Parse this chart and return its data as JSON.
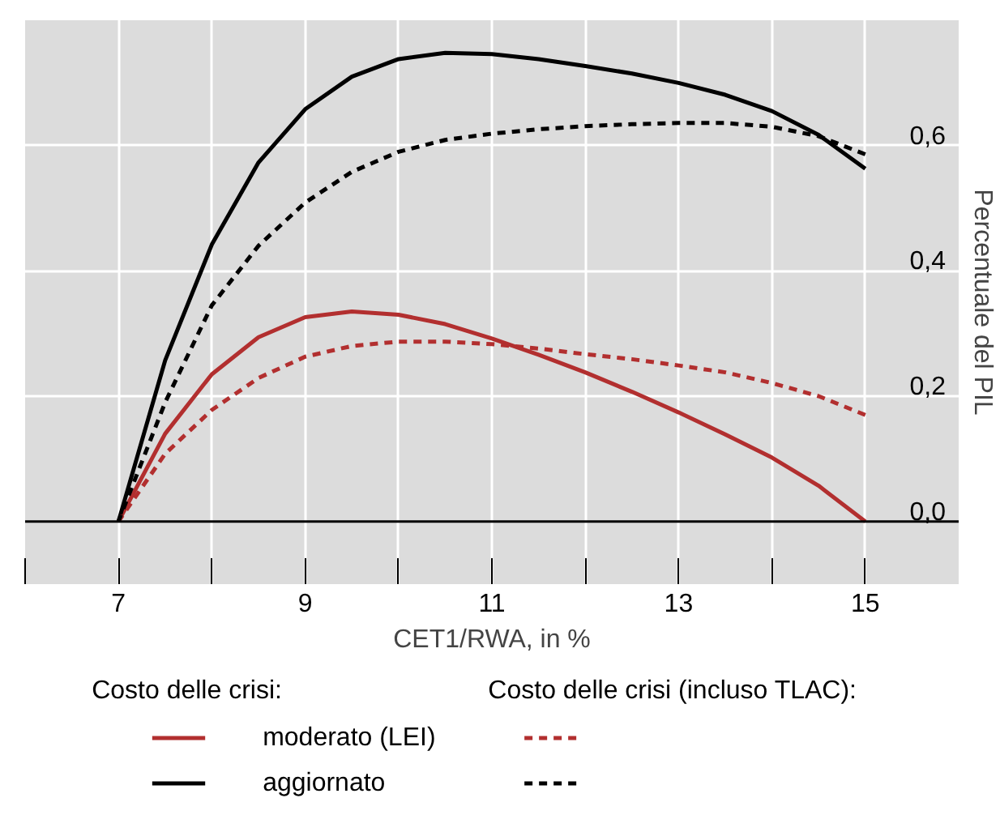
{
  "chart_data": {
    "type": "line",
    "xlabel": "CET1/RWA, in %",
    "ylabel": "Percentuale del PIL",
    "x": [
      7,
      7.5,
      8,
      8.5,
      9,
      9.5,
      10,
      10.5,
      11,
      11.5,
      12,
      12.5,
      13,
      13.5,
      14,
      14.5,
      15
    ],
    "series": [
      {
        "name": "moderato (LEI)",
        "color": "#b22f2f",
        "line_style": "solid",
        "values": [
          0,
          0.14,
          0.235,
          0.294,
          0.326,
          0.335,
          0.33,
          0.315,
          0.292,
          0.266,
          0.238,
          0.207,
          0.174,
          0.139,
          0.102,
          0.057,
          0
        ]
      },
      {
        "name": "aggiornato",
        "color": "#000000",
        "line_style": "solid",
        "values": [
          0,
          0.257,
          0.442,
          0.573,
          0.658,
          0.71,
          0.738,
          0.748,
          0.746,
          0.738,
          0.727,
          0.715,
          0.7,
          0.681,
          0.655,
          0.617,
          0.563
        ]
      },
      {
        "color": "#b22f2f",
        "line_style": "dashed",
        "values": [
          0,
          0.108,
          0.178,
          0.229,
          0.263,
          0.28,
          0.287,
          0.287,
          0.283,
          0.276,
          0.267,
          0.259,
          0.249,
          0.238,
          0.221,
          0.2,
          0.17
        ]
      },
      {
        "color": "#000000",
        "line_style": "dashed",
        "values": [
          0,
          0.19,
          0.345,
          0.44,
          0.509,
          0.558,
          0.59,
          0.609,
          0.619,
          0.626,
          0.631,
          0.634,
          0.636,
          0.636,
          0.63,
          0.615,
          0.586
        ]
      }
    ],
    "xlim": [
      6,
      16
    ],
    "xticks": [
      {
        "value": 6,
        "label": null
      },
      7,
      {
        "value": 8,
        "label": null
      },
      9,
      {
        "value": 10,
        "label": null
      },
      11,
      {
        "value": 12,
        "label": null
      },
      13,
      {
        "value": 14,
        "label": null
      },
      15
    ],
    "ylim": [
      -0.1,
      0.8
    ],
    "yticks": [
      {
        "value": 0,
        "label": "0,0"
      },
      {
        "value": 0.2,
        "label": "0,2"
      },
      {
        "value": 0.4,
        "label": "0,4"
      },
      {
        "value": 0.6,
        "label": "0,6"
      }
    ],
    "ref_lines": [
      {
        "axis": "y",
        "value": 0,
        "color": "#000000"
      }
    ],
    "grid": true,
    "legend": "bottom",
    "marker": "none",
    "annotations": [
      "Costo delle crisi:",
      "Costo delle crisi (incluso TLAC):"
    ]
  }
}
